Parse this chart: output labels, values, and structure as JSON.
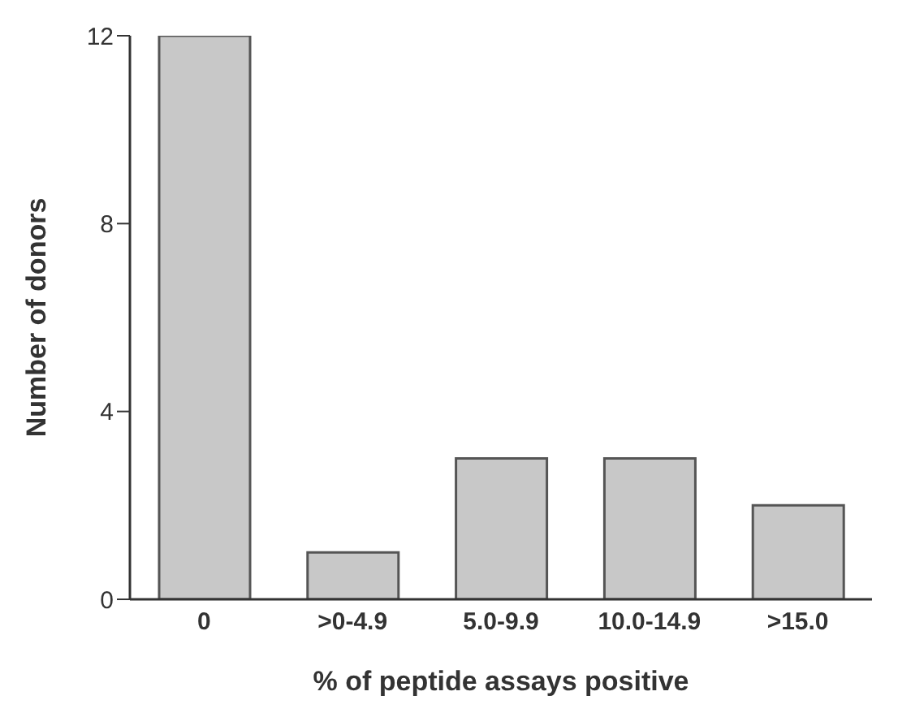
{
  "chart_data": {
    "type": "bar",
    "xlabel": "% of peptide assays positive",
    "ylabel": "Number of donors",
    "categories": [
      "0",
      ">0-4.9",
      "5.0-9.9",
      "10.0-14.9",
      ">15.0"
    ],
    "values": [
      12,
      1,
      3,
      3,
      2
    ],
    "color": "#c8c8c8",
    "ylim": [
      0,
      12
    ],
    "yticks": [
      0,
      4,
      8,
      12
    ],
    "grid": false
  }
}
